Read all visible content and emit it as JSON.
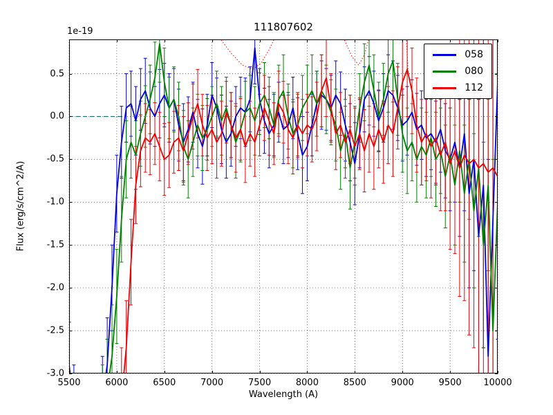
{
  "chart_data": {
    "type": "line",
    "title": "111807602",
    "xlabel": "Wavelength (A)",
    "ylabel": "Flux (erg/s/cm^2/A)",
    "offset_text": "1e-19",
    "xlim": [
      5500,
      10000
    ],
    "ylim": [
      -3.0,
      0.9
    ],
    "xticks": [
      5500,
      6000,
      6500,
      7000,
      7500,
      8000,
      8500,
      9000,
      9500,
      10000
    ],
    "yticks": [
      0.5,
      0.0,
      -0.5,
      -1.0,
      -1.5,
      -2.0,
      -2.5,
      -3.0
    ],
    "grid": true,
    "legend_position": "upper right",
    "x_start": 5500,
    "x_step": 50,
    "series": [
      {
        "name": "058",
        "color": "#0000dd",
        "values": [
          -2.9,
          -3.4,
          -3.6,
          -3.6,
          -3.6,
          -3.6,
          -3.5,
          -3.3,
          -2.9,
          -2.0,
          -0.9,
          -0.3,
          0.1,
          0.15,
          -0.05,
          0.2,
          0.3,
          0.1,
          0.0,
          0.15,
          0.25,
          0.1,
          0.2,
          -0.1,
          -0.3,
          -0.15,
          0.05,
          -0.2,
          -0.35,
          -0.1,
          0.25,
          0.1,
          -0.15,
          -0.3,
          -0.2,
          0.0,
          0.1,
          0.05,
          0.2,
          0.8,
          0.2,
          -0.05,
          -0.2,
          -0.1,
          0.05,
          -0.15,
          -0.1,
          0.1,
          -0.2,
          -0.45,
          -0.35,
          -0.1,
          0.15,
          0.25,
          0.2,
          0.1,
          0.25,
          0.15,
          -0.1,
          -0.3,
          -0.55,
          -0.2,
          0.2,
          0.3,
          0.15,
          -0.05,
          0.1,
          0.3,
          0.25,
          0.1,
          -0.1,
          -0.05,
          0.05,
          -0.15,
          -0.1,
          -0.25,
          -0.2,
          -0.3,
          -0.15,
          -0.4,
          -0.5,
          -0.3,
          -0.6,
          -0.2,
          -0.9,
          -0.5,
          -1.4,
          -0.8,
          -2.8,
          -1.2,
          0.4
        ],
        "errors": [
          0.5,
          0.5,
          0.5,
          0.5,
          0.5,
          0.5,
          0.5,
          0.5,
          0.55,
          0.5,
          0.45,
          0.42,
          0.4,
          0.38,
          0.4,
          0.36,
          0.38,
          0.42,
          0.35,
          0.4,
          0.37,
          0.4,
          0.36,
          0.42,
          0.45,
          0.38,
          0.35,
          0.4,
          0.44,
          0.36,
          0.38,
          0.35,
          0.4,
          0.42,
          0.38,
          0.35,
          0.36,
          0.4,
          0.38,
          0.42,
          0.36,
          0.38,
          0.4,
          0.36,
          0.35,
          0.4,
          0.38,
          0.36,
          0.42,
          0.45,
          0.4,
          0.36,
          0.38,
          0.4,
          0.36,
          0.38,
          0.4,
          0.37,
          0.42,
          0.45,
          0.48,
          0.4,
          0.38,
          0.4,
          0.38,
          0.36,
          0.4,
          0.42,
          0.4,
          0.38,
          0.42,
          0.4,
          0.38,
          0.42,
          0.4,
          0.45,
          0.42,
          0.48,
          0.5,
          0.55,
          0.6,
          0.7,
          0.8,
          0.9,
          1.1,
          1.3,
          1.6,
          1.9,
          2.3,
          2.7,
          3.0
        ]
      },
      {
        "name": "080",
        "color": "#008000",
        "values": [
          -3.6,
          -3.6,
          -3.6,
          -3.6,
          -3.6,
          -3.6,
          -3.6,
          -3.5,
          -3.2,
          -2.8,
          -2.1,
          -1.2,
          -0.5,
          -0.3,
          -0.45,
          -0.2,
          0.0,
          0.2,
          0.45,
          0.85,
          0.4,
          0.1,
          0.2,
          0.0,
          -0.35,
          -0.5,
          -0.3,
          -0.1,
          -0.25,
          -0.15,
          0.0,
          0.15,
          -0.05,
          0.1,
          -0.1,
          -0.3,
          -0.15,
          0.05,
          0.1,
          -0.05,
          0.15,
          0.25,
          0.1,
          -0.1,
          0.2,
          0.3,
          0.0,
          -0.2,
          -0.1,
          0.1,
          0.2,
          0.3,
          0.15,
          0.3,
          0.2,
          0.05,
          -0.1,
          -0.4,
          -0.2,
          -0.6,
          -0.3,
          0.1,
          0.4,
          0.6,
          0.3,
          0.0,
          0.2,
          0.5,
          0.65,
          0.2,
          -0.2,
          -0.4,
          -0.3,
          -0.5,
          -0.35,
          -0.45,
          -0.25,
          -0.5,
          -0.4,
          -0.7,
          -0.45,
          -0.8,
          -0.4,
          -0.9,
          -0.5,
          -1.1,
          -0.6,
          -1.5,
          -0.8,
          -2.5,
          -1.0
        ],
        "errors": [
          0.6,
          0.6,
          0.6,
          0.6,
          0.6,
          0.6,
          0.6,
          0.6,
          0.6,
          0.6,
          0.55,
          0.5,
          0.45,
          0.42,
          0.4,
          0.38,
          0.36,
          0.4,
          0.42,
          0.45,
          0.4,
          0.36,
          0.38,
          0.4,
          0.42,
          0.45,
          0.4,
          0.36,
          0.38,
          0.36,
          0.35,
          0.38,
          0.4,
          0.36,
          0.38,
          0.42,
          0.38,
          0.36,
          0.38,
          0.4,
          0.36,
          0.38,
          0.36,
          0.38,
          0.4,
          0.42,
          0.38,
          0.4,
          0.36,
          0.38,
          0.4,
          0.42,
          0.38,
          0.42,
          0.4,
          0.38,
          0.42,
          0.45,
          0.4,
          0.48,
          0.42,
          0.4,
          0.45,
          0.48,
          0.42,
          0.4,
          0.42,
          0.45,
          0.48,
          0.42,
          0.45,
          0.5,
          0.45,
          0.5,
          0.45,
          0.5,
          0.45,
          0.55,
          0.5,
          0.6,
          0.55,
          0.7,
          0.6,
          0.8,
          0.7,
          0.9,
          0.8,
          1.2,
          1.0,
          2.0,
          1.5
        ]
      },
      {
        "name": "112",
        "color": "#ee0000",
        "values": [
          -3.6,
          -3.6,
          -3.6,
          -3.6,
          -3.6,
          -3.6,
          -3.6,
          -3.6,
          -3.6,
          -3.6,
          -3.6,
          -3.3,
          -2.7,
          -1.7,
          -0.8,
          -0.4,
          -0.25,
          -0.3,
          -0.2,
          -0.35,
          -0.5,
          -0.45,
          -0.3,
          -0.25,
          -0.4,
          -0.2,
          0.0,
          0.15,
          -0.1,
          -0.25,
          -0.15,
          -0.3,
          -0.2,
          0.05,
          -0.1,
          -0.25,
          -0.15,
          -0.35,
          -0.2,
          -0.3,
          -0.1,
          0.1,
          -0.05,
          -0.2,
          0.15,
          0.05,
          -0.15,
          -0.25,
          -0.1,
          -0.2,
          -0.1,
          -0.15,
          0.0,
          0.3,
          0.45,
          0.1,
          -0.2,
          -0.1,
          -0.3,
          -0.15,
          -0.35,
          -0.2,
          -0.4,
          -0.2,
          -0.35,
          -0.15,
          -0.3,
          -0.1,
          -0.2,
          0.1,
          0.4,
          0.55,
          0.3,
          -0.1,
          -0.3,
          -0.2,
          -0.35,
          -0.25,
          -0.45,
          -0.3,
          -0.55,
          -0.4,
          -0.6,
          -0.45,
          -0.55,
          -0.5,
          -0.6,
          -0.55,
          -0.65,
          -0.6,
          -0.7
        ],
        "errors": [
          0.5,
          0.5,
          0.5,
          0.5,
          0.5,
          0.5,
          0.5,
          0.5,
          0.5,
          0.5,
          0.6,
          0.6,
          0.55,
          0.5,
          0.45,
          0.42,
          0.4,
          0.38,
          0.36,
          0.4,
          0.42,
          0.38,
          0.36,
          0.38,
          0.4,
          0.36,
          0.38,
          0.4,
          0.36,
          0.38,
          0.4,
          0.42,
          0.38,
          0.36,
          0.38,
          0.4,
          0.36,
          0.42,
          0.38,
          0.4,
          0.36,
          0.38,
          0.4,
          0.36,
          0.38,
          0.36,
          0.4,
          0.42,
          0.38,
          0.4,
          0.36,
          0.38,
          0.4,
          0.42,
          0.45,
          0.4,
          0.42,
          0.38,
          0.42,
          0.4,
          0.45,
          0.42,
          0.48,
          0.45,
          0.5,
          0.45,
          0.48,
          0.45,
          0.5,
          0.48,
          0.5,
          0.55,
          0.5,
          0.55,
          0.5,
          0.55,
          0.6,
          0.55,
          0.65,
          0.8,
          1.0,
          1.2,
          1.5,
          1.7,
          2.0,
          2.2,
          2.4,
          2.5,
          2.5,
          2.4,
          2.3
        ]
      }
    ],
    "overlays": [
      {
        "name": "zero-reference-line",
        "style": "dashed",
        "color": "#0e7070",
        "points": [
          [
            5500,
            0.0
          ],
          [
            6050,
            0.0
          ]
        ]
      },
      {
        "name": "dotted-red-dip-1",
        "style": "dotted",
        "color": "#ff2222",
        "points": [
          [
            7080,
            0.92
          ],
          [
            7200,
            0.74
          ],
          [
            7320,
            0.6
          ],
          [
            7430,
            0.55
          ],
          [
            7520,
            0.63
          ],
          [
            7600,
            0.78
          ],
          [
            7660,
            0.92
          ]
        ]
      },
      {
        "name": "dotted-red-dip-2",
        "style": "dotted",
        "color": "#ff2222",
        "points": [
          [
            8380,
            0.92
          ],
          [
            8470,
            0.7
          ],
          [
            8540,
            0.6
          ],
          [
            8600,
            0.72
          ],
          [
            8650,
            0.92
          ]
        ]
      },
      {
        "name": "dotted-red-spike",
        "style": "dotted",
        "color": "#ff2222",
        "points": [
          [
            9040,
            0.92
          ],
          [
            9060,
            0.5
          ]
        ]
      }
    ]
  }
}
